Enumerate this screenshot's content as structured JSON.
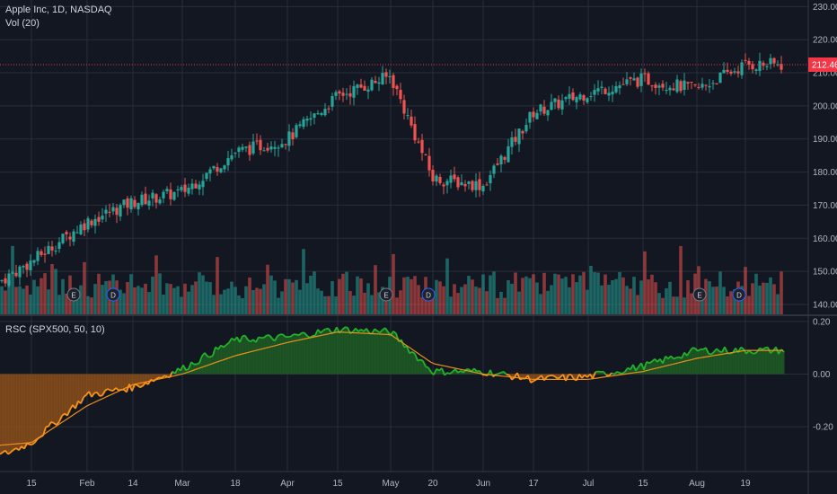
{
  "main_panel": {
    "symbol_label": "Apple Inc, 1D, NASDAQ",
    "volume_label": "Vol (20)",
    "last_price_label": "212.46",
    "price_axis_ticks": [
      "230.00",
      "220.00",
      "210.00",
      "200.00",
      "190.00",
      "180.00",
      "170.00",
      "160.00",
      "150.00",
      "140.00"
    ],
    "earnings_marker": "E",
    "dividend_marker": "D"
  },
  "indicator_panel": {
    "label": "RSC (SPX500, 50, 10)",
    "axis_ticks": [
      "0.20",
      "0.00",
      "-0.20"
    ]
  },
  "time_axis": {
    "labels": [
      "15",
      "Feb",
      "14",
      "Mar",
      "18",
      "Apr",
      "15",
      "May",
      "20",
      "Jun",
      "17",
      "Jul",
      "15",
      "Aug",
      "19"
    ]
  },
  "colors": {
    "background": "#131722",
    "up": "#26a69a",
    "down": "#ef5350",
    "last_price": "#f23645",
    "rsc_fill_pos": "#1e5c25",
    "rsc_fill_neg": "#8a4d1a",
    "rsc_line_pos": "#22b32a",
    "rsc_line_neg": "#f7931a"
  },
  "chart_data": {
    "type": "line",
    "title": "Apple Inc, 1D, NASDAQ",
    "price_ylim": [
      137,
      232
    ],
    "rsc_ylim": [
      -0.37,
      0.22
    ],
    "x": [
      "15",
      "Feb",
      "14",
      "Mar",
      "18",
      "Apr",
      "15",
      "May",
      "20",
      "Jun",
      "17",
      "Jul",
      "15",
      "Aug",
      "19"
    ],
    "price_close": [
      153,
      165,
      171,
      174,
      186,
      190,
      203,
      209,
      178,
      176,
      198,
      204,
      208,
      205,
      212.46
    ],
    "rsc_line": [
      -0.26,
      -0.08,
      -0.05,
      0.02,
      0.13,
      0.14,
      0.17,
      0.16,
      0.01,
      0.01,
      -0.02,
      -0.01,
      0.03,
      0.09,
      0.09
    ],
    "rsc_ma": [
      -0.26,
      -0.12,
      -0.04,
      0.0,
      0.07,
      0.12,
      0.16,
      0.15,
      0.04,
      0.0,
      -0.02,
      -0.02,
      0.01,
      0.06,
      0.09
    ],
    "grid": true
  }
}
